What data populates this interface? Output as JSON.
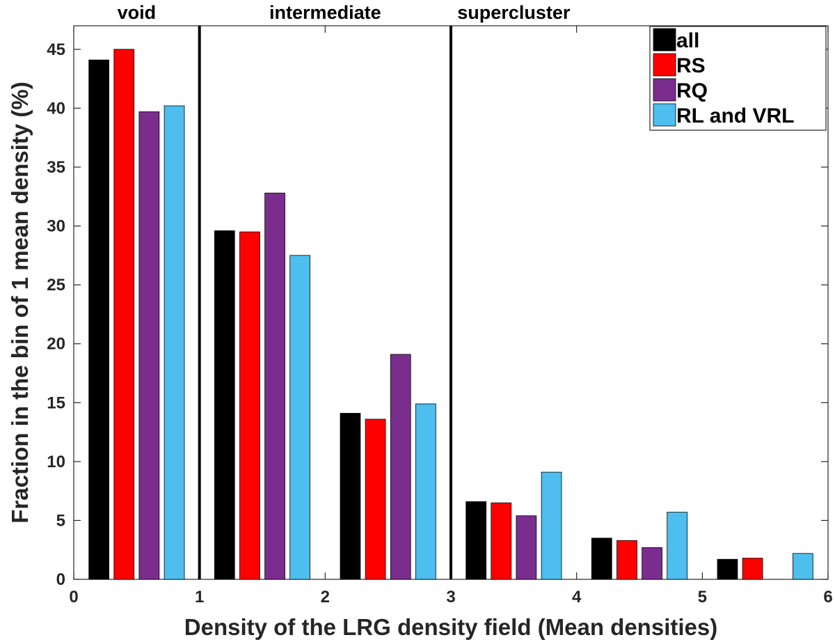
{
  "chart_data": {
    "type": "bar",
    "title": "",
    "xlabel": "Density of the LRG density field (Mean densities)",
    "ylabel": "Fraction in the bin of 1 mean density (%)",
    "xlim": [
      0,
      6
    ],
    "ylim": [
      0,
      47
    ],
    "xticks": [
      0,
      1,
      2,
      3,
      4,
      5,
      6
    ],
    "yticks": [
      0,
      5,
      10,
      15,
      20,
      25,
      30,
      35,
      40,
      45
    ],
    "bin_centers": [
      0.5,
      1.5,
      2.5,
      3.5,
      4.5,
      5.5
    ],
    "series": [
      {
        "name": "all",
        "color": "#000000",
        "values": [
          44.1,
          29.6,
          14.1,
          6.6,
          3.5,
          1.7
        ]
      },
      {
        "name": "RS",
        "color": "#ff0000",
        "values": [
          45.0,
          29.5,
          13.6,
          6.5,
          3.3,
          1.8
        ]
      },
      {
        "name": "RQ",
        "color": "#7b2d8e",
        "values": [
          39.7,
          32.8,
          19.1,
          5.4,
          2.7,
          0
        ]
      },
      {
        "name": "RL and VRL",
        "color": "#4dbeee",
        "values": [
          40.2,
          27.5,
          14.9,
          9.1,
          5.7,
          2.2
        ]
      }
    ],
    "region_labels": [
      {
        "text": "void",
        "x": 0.5
      },
      {
        "text": "intermediate",
        "x": 2.0
      },
      {
        "text": "supercluster",
        "x": 3.5
      }
    ],
    "vertical_lines_x": [
      1,
      3
    ],
    "legend": {
      "entries": [
        "all",
        "RS",
        "RQ",
        "RL and VRL"
      ],
      "position": "top-right"
    }
  }
}
